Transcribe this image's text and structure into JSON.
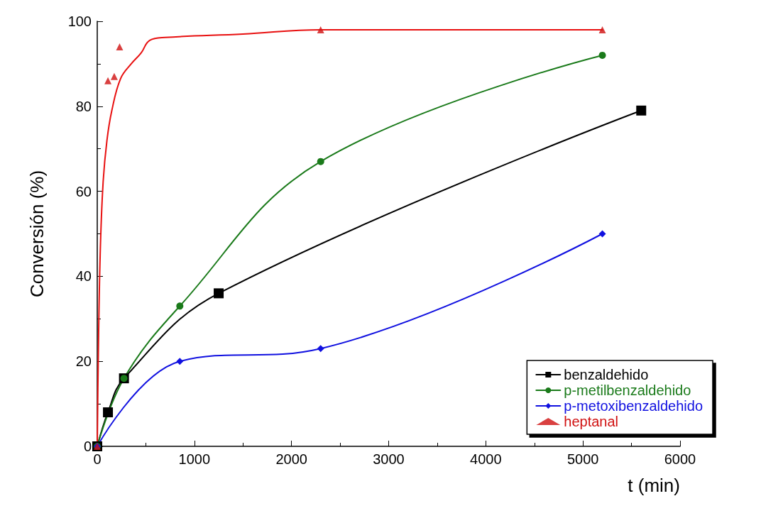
{
  "chart_data": {
    "type": "line",
    "xlabel": "t (min)",
    "ylabel": "Conversión (%)",
    "xlim": [
      0,
      6000
    ],
    "xticks": [
      0,
      1000,
      2000,
      3000,
      4000,
      5000,
      6000
    ],
    "ylim": [
      0,
      100
    ],
    "yticks": [
      0,
      20,
      40,
      60,
      80,
      100
    ],
    "grid": false,
    "legend": "bottom right",
    "series": [
      {
        "name": "benzaldehido",
        "color": "#000000",
        "marker": "square",
        "x": [
          0,
          110,
          275,
          1250,
          5600
        ],
        "values": [
          0,
          8,
          16,
          36,
          79
        ]
      },
      {
        "name": "p-metilbenzaldehido",
        "color": "#1a7a1a",
        "marker": "circle",
        "x": [
          0,
          275,
          850,
          2300,
          5200
        ],
        "values": [
          0,
          16,
          33,
          67,
          92
        ]
      },
      {
        "name": "p-metoxibenzaldehido",
        "color": "#1010e0",
        "marker": "diamond",
        "x": [
          0,
          850,
          2300,
          5200
        ],
        "values": [
          0,
          20,
          23,
          50
        ]
      },
      {
        "name": "heptanal",
        "type": "scatter",
        "color": "#d01010",
        "marker": "triangle",
        "x": [
          0,
          110,
          175,
          230,
          2300,
          5200
        ],
        "values": [
          0,
          86,
          87,
          94,
          98,
          98
        ]
      },
      {
        "type": "line",
        "color": "#e81010",
        "marker": "none",
        "x": [
          0,
          10,
          30,
          60,
          100,
          150,
          240,
          350,
          450,
          540,
          700,
          1500,
          2300,
          5200
        ],
        "values": [
          0,
          20,
          45,
          62,
          72,
          79,
          86.5,
          90,
          92.5,
          95.5,
          96.2,
          97,
          98,
          98
        ]
      }
    ]
  }
}
